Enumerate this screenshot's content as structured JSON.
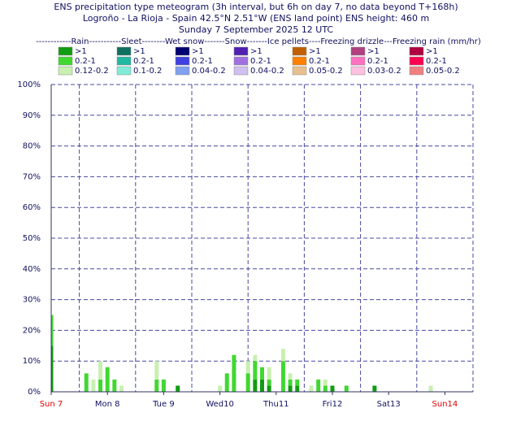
{
  "chart_data": {
    "type": "bar",
    "title": "ENS precipitation type meteogram (3h interval, but 6h on day 7, no data beyond T+168h)",
    "subtitle": "Logroño - La Rioja - Spain 42.5°N 2.51°W (ENS land point) ENS height: 460 m",
    "date": "Sunday  7 September 2025 12 UTC",
    "legend_header": "------------Rain-----------Sleet--------Wet snow-------Snow-------Ice pellets----Freezing drizzle---Freezing rain (mm/hr)",
    "legend": [
      [
        {
          "label": ">1",
          "color": "#129c12"
        },
        {
          "label": "0.2-1",
          "color": "#40d830"
        },
        {
          "label": "0.12-0.2",
          "color": "#c8f0b0"
        }
      ],
      [
        {
          "label": ">1",
          "color": "#107060"
        },
        {
          "label": "0.2-1",
          "color": "#20b8a0"
        },
        {
          "label": "0.1-0.2",
          "color": "#80ecd8"
        }
      ],
      [
        {
          "label": ">1",
          "color": "#000070"
        },
        {
          "label": "0.2-1",
          "color": "#4040e0"
        },
        {
          "label": "0.04-0.2",
          "color": "#80a0f0"
        }
      ],
      [
        {
          "label": ">1",
          "color": "#5020b0"
        },
        {
          "label": "0.2-1",
          "color": "#a070e0"
        },
        {
          "label": "0.04-0.2",
          "color": "#d0c0f0"
        }
      ],
      [
        {
          "label": ">1",
          "color": "#c06000"
        },
        {
          "label": "0.2-1",
          "color": "#ff8000"
        },
        {
          "label": "0.05-0.2",
          "color": "#e8c090"
        }
      ],
      [
        {
          "label": ">1",
          "color": "#b04080"
        },
        {
          "label": "0.2-1",
          "color": "#ff70c0"
        },
        {
          "label": "0.03-0.2",
          "color": "#ffc0e0"
        }
      ],
      [
        {
          "label": ">1",
          "color": "#b00040"
        },
        {
          "label": "0.2-1",
          "color": "#ff0050"
        },
        {
          "label": "0.05-0.2",
          "color": "#f08080"
        }
      ]
    ],
    "x": [
      0,
      15,
      18,
      21,
      24,
      27,
      30,
      45,
      48,
      54,
      72,
      75,
      78,
      84,
      87,
      90,
      93,
      99,
      102,
      105,
      111,
      114,
      117,
      120,
      126,
      138,
      162
    ],
    "series": [
      {
        "color": "#129c12",
        "values": [
          15,
          0,
          0,
          0,
          0,
          0,
          0,
          0,
          0,
          2,
          0,
          0,
          0,
          0,
          4,
          4,
          2,
          0,
          2,
          2,
          0,
          0,
          0,
          2,
          0,
          2,
          0
        ]
      },
      {
        "color": "#40d830",
        "values": [
          10,
          6,
          0,
          4,
          8,
          4,
          0,
          4,
          4,
          0,
          0,
          6,
          12,
          6,
          6,
          4,
          2,
          10,
          2,
          2,
          0,
          4,
          2,
          0,
          2,
          0,
          0
        ]
      },
      {
        "color": "#c8f0b0",
        "values": [
          0,
          0,
          4,
          6,
          0,
          0,
          2,
          6,
          0,
          0,
          2,
          0,
          0,
          4,
          2,
          0,
          4,
          4,
          2,
          0,
          2,
          0,
          2,
          0,
          0,
          0,
          2
        ]
      }
    ],
    "xlim": [
      0,
      180
    ],
    "xticks": [
      {
        "value": 0,
        "label": "Sun 7",
        "color": "#e00000"
      },
      {
        "value": 24,
        "label": "Mon 8"
      },
      {
        "value": 48,
        "label": "Tue 9"
      },
      {
        "value": 72,
        "label": "Wed10"
      },
      {
        "value": 96,
        "label": "Thu11"
      },
      {
        "value": 120,
        "label": "Fri12"
      },
      {
        "value": 144,
        "label": "Sat13"
      },
      {
        "value": 168,
        "label": "Sun14",
        "color": "#e00000"
      }
    ],
    "ylim": [
      0,
      100
    ],
    "yticks": [
      {
        "value": 0,
        "label": "0%"
      },
      {
        "value": 10,
        "label": "10%"
      },
      {
        "value": 20,
        "label": "20%"
      },
      {
        "value": 30,
        "label": "30%"
      },
      {
        "value": 40,
        "label": "40%"
      },
      {
        "value": 50,
        "label": "50%"
      },
      {
        "value": 60,
        "label": "60%"
      },
      {
        "value": 70,
        "label": "70%"
      },
      {
        "value": 80,
        "label": "80%"
      },
      {
        "value": 90,
        "label": "90%"
      },
      {
        "value": 100,
        "label": "100%"
      }
    ],
    "grid": true
  }
}
